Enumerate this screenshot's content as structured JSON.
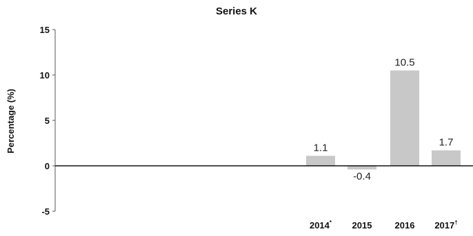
{
  "chart_data": {
    "type": "bar",
    "title": "Series K",
    "ylabel": "Percentage (%)",
    "xlabel": "",
    "ylim": [
      -5,
      15
    ],
    "yticks": [
      15,
      10,
      5,
      0,
      -5
    ],
    "categories": [
      "2014",
      "2015",
      "2016",
      "2017"
    ],
    "category_marks": [
      "*",
      "",
      "",
      "†"
    ],
    "values": [
      1.1,
      -0.4,
      10.5,
      1.7
    ],
    "value_labels": [
      "1.1",
      "-0.4",
      "10.5",
      "1.7"
    ],
    "bar_color": "#c8c8c8",
    "grid": false
  }
}
